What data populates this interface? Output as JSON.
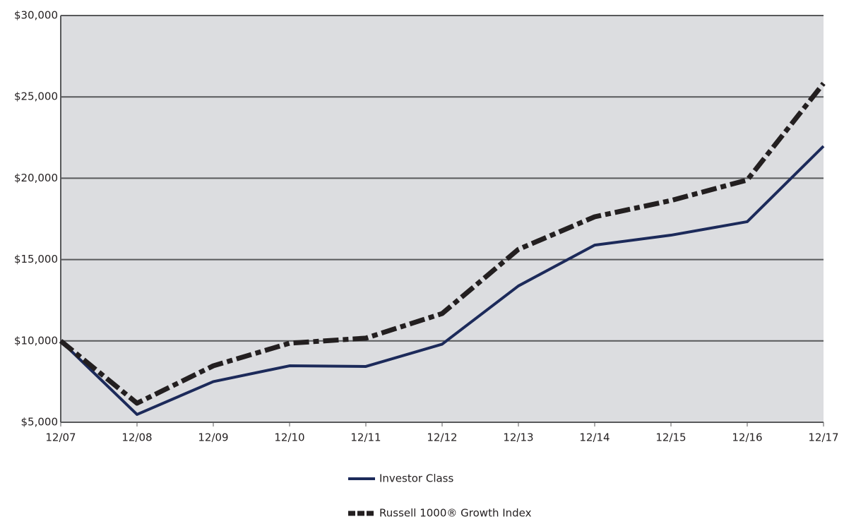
{
  "chart_data": {
    "type": "line",
    "categories": [
      "12/07",
      "12/08",
      "12/09",
      "12/10",
      "12/11",
      "12/12",
      "12/13",
      "12/14",
      "12/15",
      "12/16",
      "12/17"
    ],
    "series": [
      {
        "name": "Investor Class",
        "color": "#1c2a5a",
        "values": [
          10000,
          5480,
          7500,
          8470,
          8430,
          9800,
          13380,
          15890,
          16500,
          17330,
          21970
        ]
      },
      {
        "name": "Russell 1000® Growth Index",
        "color": "#231f20",
        "values": [
          10000,
          6170,
          8470,
          9860,
          10170,
          11680,
          15630,
          17630,
          18630,
          19890,
          25830
        ]
      }
    ],
    "ylim": [
      5000,
      30000
    ],
    "yticks": [
      {
        "value": 5000,
        "label": "$5,000"
      },
      {
        "value": 10000,
        "label": "$10,000"
      },
      {
        "value": 15000,
        "label": "$15,000"
      },
      {
        "value": 20000,
        "label": "$20,000"
      },
      {
        "value": 25000,
        "label": "$25,000"
      },
      {
        "value": 30000,
        "label": "$30,000"
      }
    ],
    "grid": true
  }
}
